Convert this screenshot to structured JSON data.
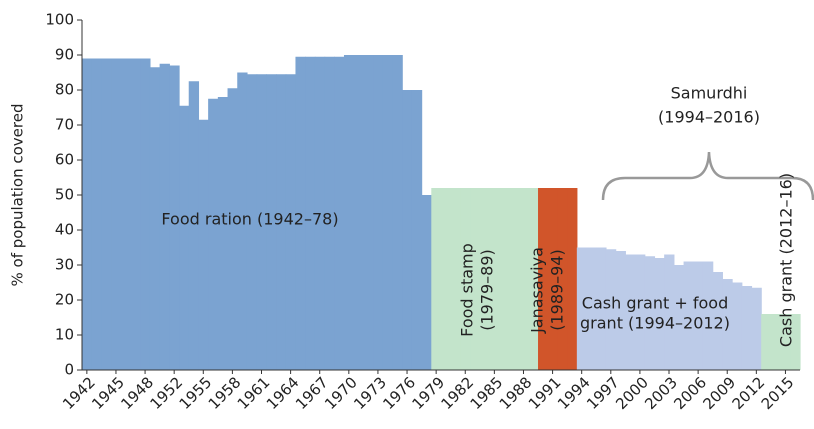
{
  "chart_data": {
    "type": "bar",
    "y_label": "% of population covered",
    "ylim": [
      0,
      100
    ],
    "yticks": [
      0,
      10,
      20,
      30,
      40,
      50,
      60,
      70,
      80,
      90,
      100
    ],
    "categories": [
      "1942",
      null,
      null,
      "1945",
      null,
      null,
      "1948",
      null,
      null,
      "1952",
      null,
      null,
      "1955",
      null,
      null,
      "1958",
      null,
      null,
      "1961",
      null,
      null,
      "1964",
      null,
      null,
      "1967",
      null,
      null,
      "1970",
      null,
      null,
      "1973",
      null,
      null,
      "1976",
      null,
      null,
      "1979",
      null,
      null,
      "1982",
      null,
      null,
      "1985",
      null,
      null,
      "1988",
      null,
      null,
      "1991",
      null,
      null,
      "1994",
      null,
      null,
      "1997",
      null,
      null,
      "2000",
      null,
      null,
      "2003",
      null,
      null,
      "2006",
      null,
      null,
      "2009",
      null,
      null,
      "2012",
      null,
      null,
      "2015",
      null
    ],
    "series": [
      {
        "name": [
          "Food ration (1942–78)"
        ],
        "color": "#7ba3d1",
        "values": [
          89,
          89,
          89,
          89,
          89,
          89,
          89,
          86.5,
          87.5,
          87,
          75.5,
          82.5,
          71.5,
          77.5,
          78,
          80.5,
          85,
          84.5,
          84.5,
          84.5,
          84.5,
          84.5,
          89.5,
          89.5,
          89.5,
          89.5,
          89.5,
          90,
          90,
          90,
          90,
          90,
          90,
          80,
          80,
          50,
          null,
          null,
          null,
          null,
          null,
          null,
          null,
          null,
          null,
          null,
          null,
          null,
          null,
          null,
          null,
          null,
          null,
          null,
          null,
          null,
          null,
          null,
          null,
          null,
          null,
          null,
          null,
          null,
          null,
          null,
          null,
          null,
          null,
          null,
          null,
          null,
          null,
          null
        ]
      },
      {
        "name": [
          "Food stamp",
          "(1979–89)"
        ],
        "color": "#c3e4cb",
        "values": [
          null,
          null,
          null,
          null,
          null,
          null,
          null,
          null,
          null,
          null,
          null,
          null,
          null,
          null,
          null,
          null,
          null,
          null,
          null,
          null,
          null,
          null,
          null,
          null,
          null,
          null,
          null,
          null,
          null,
          null,
          null,
          null,
          null,
          null,
          null,
          null,
          52,
          52,
          52,
          52,
          52,
          52,
          52,
          52,
          52,
          52,
          52,
          null,
          null,
          null,
          null,
          null,
          null,
          null,
          null,
          null,
          null,
          null,
          null,
          null,
          null,
          null,
          null,
          null,
          null,
          null,
          null,
          null,
          null,
          null,
          null,
          null,
          null,
          null
        ]
      },
      {
        "name": [
          "Janasaviya",
          "(1989–94)"
        ],
        "color": "#d1552a",
        "values": [
          null,
          null,
          null,
          null,
          null,
          null,
          null,
          null,
          null,
          null,
          null,
          null,
          null,
          null,
          null,
          null,
          null,
          null,
          null,
          null,
          null,
          null,
          null,
          null,
          null,
          null,
          null,
          null,
          null,
          null,
          null,
          null,
          null,
          null,
          null,
          null,
          null,
          null,
          null,
          null,
          null,
          null,
          null,
          null,
          null,
          null,
          null,
          52,
          52,
          52,
          52,
          null,
          null,
          null,
          null,
          null,
          null,
          null,
          null,
          null,
          null,
          null,
          null,
          null,
          null,
          null,
          null,
          null,
          null,
          null,
          null,
          null,
          null,
          null
        ]
      },
      {
        "name": [
          "Cash grant + food",
          "grant (1994–2012)"
        ],
        "color": "#bccbe8",
        "values": [
          null,
          null,
          null,
          null,
          null,
          null,
          null,
          null,
          null,
          null,
          null,
          null,
          null,
          null,
          null,
          null,
          null,
          null,
          null,
          null,
          null,
          null,
          null,
          null,
          null,
          null,
          null,
          null,
          null,
          null,
          null,
          null,
          null,
          null,
          null,
          null,
          null,
          null,
          null,
          null,
          null,
          null,
          null,
          null,
          null,
          null,
          null,
          null,
          null,
          null,
          null,
          35,
          35,
          35,
          34.5,
          34,
          33,
          33,
          32.5,
          32,
          33,
          30,
          31,
          31,
          31,
          28,
          26,
          25,
          24,
          23.5,
          null,
          null,
          null,
          null
        ]
      },
      {
        "name": [
          "Cash grant (2012–16)"
        ],
        "color": "#c3e4cb",
        "values": [
          null,
          null,
          null,
          null,
          null,
          null,
          null,
          null,
          null,
          null,
          null,
          null,
          null,
          null,
          null,
          null,
          null,
          null,
          null,
          null,
          null,
          null,
          null,
          null,
          null,
          null,
          null,
          null,
          null,
          null,
          null,
          null,
          null,
          null,
          null,
          null,
          null,
          null,
          null,
          null,
          null,
          null,
          null,
          null,
          null,
          null,
          null,
          null,
          null,
          null,
          null,
          null,
          null,
          null,
          null,
          null,
          null,
          null,
          null,
          null,
          null,
          null,
          null,
          null,
          null,
          null,
          null,
          null,
          null,
          null,
          16,
          16,
          16,
          16
        ]
      }
    ],
    "annotation": [
      "Samurdhi",
      "(1994–2016)"
    ]
  }
}
